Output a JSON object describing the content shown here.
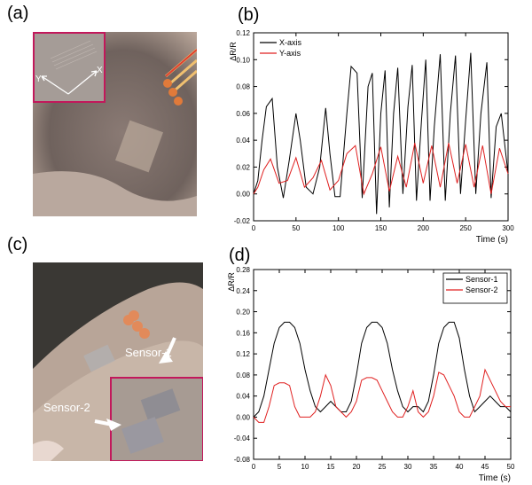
{
  "panels": {
    "a": {
      "label": "(a)",
      "photo_axis_labels": {
        "x": "X",
        "y": "Y"
      }
    },
    "b": {
      "label": "(b)"
    },
    "c": {
      "label": "(c)",
      "sensor1": "Sensor-1",
      "sensor2": "Sensor-2"
    },
    "d": {
      "label": "(d)"
    }
  },
  "colors": {
    "black": "#000000",
    "red": "#e02020",
    "frame": "#c2185b"
  },
  "chart_data": [
    {
      "type": "line",
      "panel": "(b)",
      "ylabel": "ΔR/R",
      "xlabel": "Time (s)",
      "xlim": [
        0,
        300
      ],
      "ylim": [
        -0.02,
        0.12
      ],
      "xticks": [
        0,
        50,
        100,
        150,
        200,
        250,
        300
      ],
      "yticks": [
        -0.02,
        0.0,
        0.02,
        0.04,
        0.06,
        0.08,
        0.1,
        0.12
      ],
      "ytick_labels": [
        "-0.02",
        "0.00",
        "0.02",
        "0.04",
        "0.06",
        "0.08",
        "0.10",
        "0.12"
      ],
      "xtick_labels": [
        "0",
        "50",
        "100",
        "150",
        "200",
        "250",
        "300"
      ],
      "legend_position": "top-left",
      "series": [
        {
          "name": "X-axis",
          "color": "#000000",
          "x": [
            0,
            5,
            10,
            15,
            22,
            28,
            35,
            42,
            50,
            55,
            62,
            70,
            78,
            85,
            90,
            96,
            102,
            110,
            115,
            122,
            128,
            135,
            140,
            145,
            150,
            155,
            160,
            165,
            170,
            176,
            182,
            187,
            192,
            198,
            203,
            208,
            213,
            220,
            226,
            232,
            238,
            244,
            250,
            256,
            262,
            268,
            275,
            280,
            286,
            292,
            300
          ],
          "y": [
            0.0,
            0.01,
            0.04,
            0.065,
            0.071,
            0.02,
            -0.003,
            0.025,
            0.06,
            0.04,
            0.005,
            0.0,
            0.02,
            0.064,
            0.03,
            -0.002,
            -0.002,
            0.06,
            0.095,
            0.09,
            -0.003,
            0.08,
            0.09,
            -0.015,
            0.06,
            0.092,
            -0.01,
            0.06,
            0.094,
            0.0,
            0.065,
            0.096,
            -0.005,
            0.055,
            0.1,
            -0.005,
            0.05,
            0.104,
            -0.005,
            0.06,
            0.103,
            0.0,
            0.055,
            0.105,
            0.0,
            0.06,
            0.098,
            -0.003,
            0.05,
            0.06,
            0.015
          ]
        },
        {
          "name": "Y-axis",
          "color": "#e02020",
          "x": [
            0,
            5,
            12,
            20,
            30,
            40,
            50,
            60,
            70,
            80,
            90,
            100,
            110,
            120,
            130,
            140,
            150,
            160,
            170,
            180,
            190,
            200,
            210,
            220,
            230,
            240,
            250,
            260,
            270,
            280,
            290,
            300
          ],
          "y": [
            0.0,
            0.005,
            0.018,
            0.026,
            0.008,
            0.01,
            0.027,
            0.005,
            0.012,
            0.025,
            0.003,
            0.01,
            0.03,
            0.036,
            0.0,
            0.015,
            0.035,
            0.002,
            0.028,
            0.005,
            0.038,
            0.008,
            0.036,
            0.005,
            0.038,
            0.008,
            0.037,
            0.005,
            0.036,
            0.0,
            0.034,
            0.015
          ]
        }
      ]
    },
    {
      "type": "line",
      "panel": "(d)",
      "ylabel": "ΔR/R",
      "xlabel": "Time (s)",
      "xlim": [
        0,
        50
      ],
      "ylim": [
        -0.08,
        0.28
      ],
      "xticks": [
        0,
        5,
        10,
        15,
        20,
        25,
        30,
        35,
        40,
        45,
        50
      ],
      "yticks": [
        -0.08,
        -0.04,
        0.0,
        0.04,
        0.08,
        0.12,
        0.16,
        0.2,
        0.24,
        0.28
      ],
      "ytick_labels": [
        "-0.08",
        "-0.04",
        "0.00",
        "0.04",
        "0.08",
        "0.12",
        "0.16",
        "0.20",
        "0.24",
        "0.28"
      ],
      "xtick_labels": [
        "0",
        "5",
        "10",
        "15",
        "20",
        "25",
        "30",
        "35",
        "40",
        "45",
        "50"
      ],
      "legend_position": "top-right",
      "series": [
        {
          "name": "Sensor-1",
          "color": "#000000",
          "x": [
            0,
            1,
            2,
            3,
            4,
            5,
            6,
            7,
            8,
            9,
            10,
            11,
            12,
            13,
            14,
            15,
            16,
            17,
            18,
            19,
            20,
            21,
            22,
            23,
            24,
            25,
            26,
            27,
            28,
            29,
            30,
            31,
            32,
            33,
            34,
            35,
            36,
            37,
            38,
            39,
            40,
            41,
            42,
            43,
            44,
            45,
            46,
            47,
            48,
            49,
            50
          ],
          "y": [
            0.0,
            0.01,
            0.04,
            0.09,
            0.14,
            0.17,
            0.18,
            0.18,
            0.17,
            0.14,
            0.09,
            0.05,
            0.02,
            0.01,
            0.02,
            0.03,
            0.02,
            0.01,
            0.01,
            0.03,
            0.08,
            0.14,
            0.17,
            0.18,
            0.18,
            0.17,
            0.14,
            0.09,
            0.05,
            0.02,
            0.01,
            0.02,
            0.02,
            0.01,
            0.03,
            0.08,
            0.14,
            0.17,
            0.18,
            0.18,
            0.15,
            0.09,
            0.04,
            0.01,
            0.02,
            0.03,
            0.04,
            0.03,
            0.02,
            0.02,
            0.01
          ]
        },
        {
          "name": "Sensor-2",
          "color": "#e02020",
          "x": [
            0,
            1,
            2,
            3,
            4,
            5,
            6,
            7,
            8,
            9,
            10,
            11,
            12,
            13,
            14,
            15,
            16,
            17,
            18,
            19,
            20,
            21,
            22,
            23,
            24,
            25,
            26,
            27,
            28,
            29,
            30,
            31,
            32,
            33,
            34,
            35,
            36,
            37,
            38,
            39,
            40,
            41,
            42,
            43,
            44,
            45,
            46,
            47,
            48,
            49,
            50
          ],
          "y": [
            0.0,
            -0.01,
            -0.01,
            0.02,
            0.06,
            0.065,
            0.065,
            0.06,
            0.02,
            0.0,
            0.0,
            0.0,
            0.01,
            0.04,
            0.08,
            0.06,
            0.02,
            0.01,
            0.0,
            0.01,
            0.03,
            0.07,
            0.075,
            0.075,
            0.07,
            0.05,
            0.03,
            0.01,
            0.0,
            0.0,
            0.02,
            0.05,
            0.01,
            0.0,
            0.01,
            0.04,
            0.085,
            0.08,
            0.06,
            0.04,
            0.01,
            0.0,
            0.0,
            0.02,
            0.04,
            0.09,
            0.07,
            0.05,
            0.03,
            0.02,
            0.02
          ]
        }
      ]
    }
  ]
}
